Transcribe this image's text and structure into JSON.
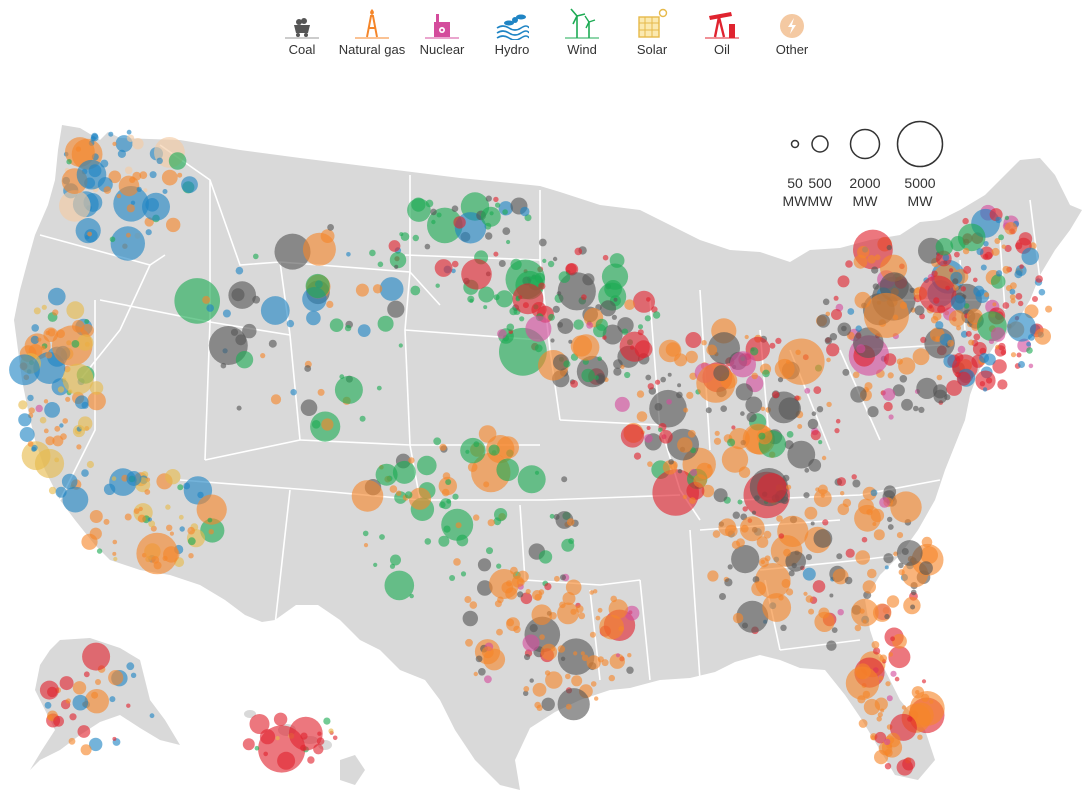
{
  "legend": {
    "items": [
      {
        "key": "coal",
        "label": "Coal",
        "color": "#555555",
        "icon": "coal-cart-icon"
      },
      {
        "key": "gas",
        "label": "Natural gas",
        "color": "#f5862a",
        "icon": "gas-derrick-icon"
      },
      {
        "key": "nuclear",
        "label": "Nuclear",
        "color": "#d44c9c",
        "icon": "nuclear-plant-icon"
      },
      {
        "key": "hydro",
        "label": "Hydro",
        "color": "#1f84c4",
        "icon": "hydro-turbine-icon"
      },
      {
        "key": "wind",
        "label": "Wind",
        "color": "#1dab54",
        "icon": "wind-turbine-icon"
      },
      {
        "key": "solar",
        "label": "Solar",
        "color": "#e6b94a",
        "icon": "solar-panel-icon"
      },
      {
        "key": "oil",
        "label": "Oil",
        "color": "#e0232f",
        "icon": "oil-pump-icon"
      },
      {
        "key": "other",
        "label": "Other",
        "color": "#f4c9a2",
        "icon": "lightning-icon"
      }
    ]
  },
  "size_legend": {
    "items": [
      {
        "value": "50",
        "unit": "MW"
      },
      {
        "value": "500",
        "unit": "MW"
      },
      {
        "value": "2000",
        "unit": "MW"
      },
      {
        "value": "5000",
        "unit": "MW"
      }
    ]
  },
  "map": {
    "land_color": "#d9d9d9",
    "border_color": "#ffffff"
  }
}
